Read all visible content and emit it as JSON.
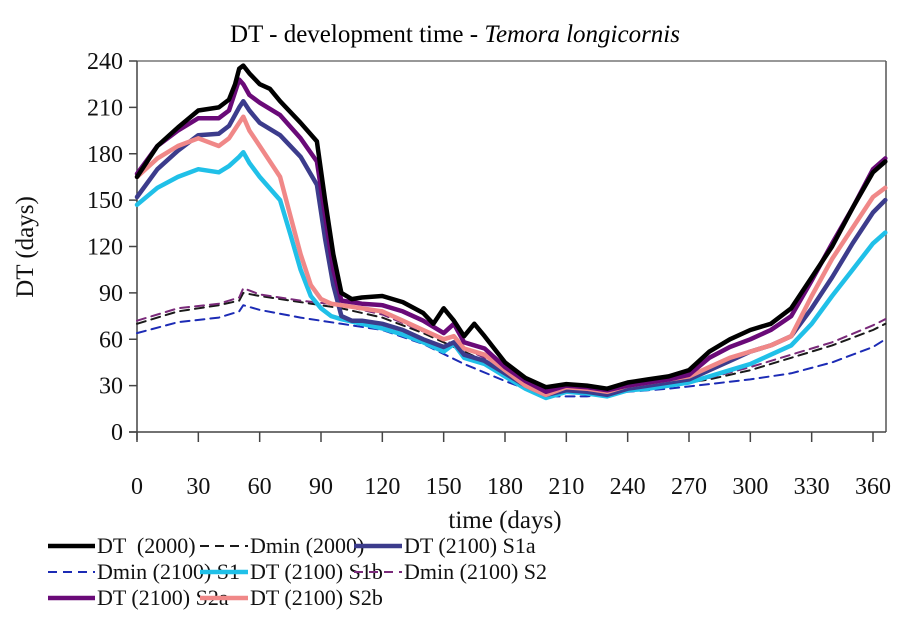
{
  "chart_data": {
    "type": "line",
    "title": "DT - development time - ",
    "title_italic": "Temora longicornis",
    "xlabel": "time (days)",
    "ylabel": "DT (days)",
    "xlim": [
      0,
      366
    ],
    "ylim": [
      0,
      240
    ],
    "xticks": [
      0,
      30,
      60,
      90,
      120,
      150,
      180,
      210,
      240,
      270,
      300,
      330,
      360
    ],
    "yticks": [
      0,
      30,
      60,
      90,
      120,
      150,
      180,
      210,
      240
    ],
    "grid": false,
    "legend_position": "bottom",
    "series": [
      {
        "name": "DT  (2000)",
        "color": "#000000",
        "style": "solid",
        "x": [
          0,
          10,
          20,
          30,
          40,
          45,
          48,
          50,
          52,
          55,
          60,
          65,
          70,
          80,
          88,
          92,
          96,
          100,
          105,
          110,
          120,
          130,
          140,
          145,
          150,
          155,
          160,
          165,
          170,
          180,
          190,
          200,
          210,
          220,
          230,
          240,
          250,
          260,
          270,
          280,
          290,
          300,
          310,
          320,
          330,
          340,
          350,
          360,
          366
        ],
        "y": [
          165,
          185,
          197,
          208,
          210,
          215,
          225,
          235,
          237,
          232,
          225,
          222,
          214,
          200,
          188,
          150,
          115,
          90,
          86,
          87,
          88,
          84,
          77,
          70,
          80,
          72,
          62,
          70,
          62,
          45,
          35,
          29,
          31,
          30,
          28,
          32,
          34,
          36,
          40,
          52,
          60,
          66,
          70,
          80,
          100,
          120,
          145,
          168,
          175
        ]
      },
      {
        "name": "Dmin (2000)",
        "color": "#1a1a1a",
        "style": "dashed",
        "x": [
          0,
          20,
          40,
          50,
          52,
          60,
          80,
          100,
          120,
          140,
          160,
          180,
          200,
          220,
          240,
          260,
          280,
          300,
          320,
          340,
          360,
          366
        ],
        "y": [
          70,
          78,
          82,
          85,
          90,
          88,
          84,
          80,
          74,
          64,
          52,
          40,
          28,
          26,
          28,
          30,
          34,
          40,
          48,
          56,
          66,
          70
        ]
      },
      {
        "name": "DT (2100) S1a",
        "color": "#3c3c8c",
        "style": "solid",
        "x": [
          0,
          10,
          20,
          30,
          40,
          45,
          50,
          52,
          55,
          60,
          70,
          80,
          88,
          92,
          96,
          100,
          105,
          110,
          120,
          130,
          140,
          150,
          155,
          160,
          170,
          180,
          190,
          200,
          210,
          220,
          230,
          240,
          250,
          260,
          270,
          280,
          290,
          300,
          310,
          320,
          330,
          340,
          350,
          360,
          366
        ],
        "y": [
          152,
          170,
          182,
          192,
          193,
          198,
          210,
          214,
          208,
          200,
          192,
          178,
          160,
          125,
          95,
          75,
          72,
          72,
          70,
          66,
          60,
          55,
          58,
          50,
          46,
          38,
          30,
          24,
          27,
          26,
          24,
          28,
          30,
          32,
          34,
          40,
          46,
          52,
          56,
          62,
          80,
          100,
          122,
          142,
          150
        ]
      },
      {
        "name": "Dmin (2100) S1",
        "color": "#1c2bb5",
        "style": "dashed",
        "x": [
          0,
          20,
          40,
          50,
          52,
          60,
          80,
          100,
          120,
          140,
          160,
          180,
          200,
          220,
          240,
          260,
          280,
          300,
          320,
          340,
          360,
          366
        ],
        "y": [
          64,
          71,
          74,
          78,
          82,
          79,
          74,
          70,
          66,
          57,
          44,
          33,
          23,
          23,
          26,
          28,
          31,
          34,
          38,
          45,
          55,
          60
        ]
      },
      {
        "name": "DT (2100) S1b",
        "color": "#20c0e8",
        "style": "solid",
        "x": [
          0,
          10,
          20,
          30,
          40,
          45,
          50,
          52,
          55,
          60,
          70,
          75,
          80,
          85,
          90,
          95,
          100,
          110,
          120,
          130,
          140,
          150,
          155,
          160,
          170,
          180,
          190,
          200,
          210,
          220,
          230,
          240,
          250,
          260,
          270,
          280,
          290,
          300,
          310,
          320,
          330,
          340,
          350,
          360,
          366
        ],
        "y": [
          147,
          158,
          165,
          170,
          168,
          172,
          178,
          181,
          174,
          165,
          150,
          128,
          105,
          88,
          80,
          75,
          73,
          70,
          67,
          63,
          58,
          52,
          57,
          48,
          44,
          36,
          28,
          22,
          26,
          25,
          23,
          27,
          28,
          30,
          32,
          36,
          40,
          44,
          50,
          56,
          70,
          88,
          105,
          122,
          129
        ]
      },
      {
        "name": "Dmin (2100) S2",
        "color": "#7a2a7a",
        "style": "dashed",
        "x": [
          0,
          20,
          40,
          50,
          52,
          60,
          80,
          100,
          120,
          140,
          160,
          180,
          200,
          220,
          240,
          260,
          280,
          300,
          320,
          340,
          360,
          366
        ],
        "y": [
          72,
          80,
          83,
          87,
          93,
          89,
          85,
          82,
          76,
          65,
          54,
          42,
          29,
          27,
          29,
          31,
          35,
          42,
          50,
          58,
          69,
          73
        ]
      },
      {
        "name": "DT (2100) S2a",
        "color": "#6a0a78",
        "style": "solid",
        "x": [
          0,
          10,
          20,
          30,
          40,
          45,
          48,
          50,
          52,
          55,
          60,
          70,
          80,
          88,
          92,
          96,
          100,
          105,
          110,
          120,
          130,
          140,
          150,
          155,
          160,
          170,
          180,
          190,
          200,
          210,
          220,
          230,
          240,
          250,
          260,
          270,
          280,
          290,
          300,
          310,
          320,
          330,
          340,
          350,
          360,
          366
        ],
        "y": [
          167,
          185,
          195,
          203,
          203,
          208,
          220,
          228,
          225,
          218,
          213,
          205,
          190,
          175,
          140,
          105,
          85,
          84,
          83,
          82,
          78,
          72,
          64,
          70,
          58,
          54,
          42,
          33,
          26,
          30,
          29,
          27,
          30,
          32,
          34,
          37,
          48,
          55,
          60,
          66,
          75,
          98,
          122,
          145,
          170,
          177
        ]
      },
      {
        "name": "DT (2100) S2b",
        "color": "#f08888",
        "style": "solid",
        "x": [
          0,
          10,
          20,
          30,
          40,
          45,
          50,
          52,
          55,
          60,
          70,
          75,
          80,
          85,
          90,
          95,
          100,
          110,
          120,
          130,
          140,
          150,
          155,
          160,
          170,
          180,
          190,
          200,
          210,
          220,
          230,
          240,
          250,
          260,
          270,
          280,
          290,
          300,
          310,
          320,
          330,
          340,
          350,
          360,
          366
        ],
        "y": [
          165,
          177,
          185,
          190,
          185,
          190,
          200,
          204,
          195,
          185,
          165,
          140,
          115,
          95,
          86,
          83,
          82,
          80,
          78,
          72,
          66,
          60,
          62,
          54,
          50,
          40,
          30,
          24,
          29,
          28,
          26,
          30,
          32,
          34,
          36,
          42,
          48,
          52,
          56,
          62,
          88,
          112,
          132,
          152,
          158
        ]
      }
    ]
  }
}
